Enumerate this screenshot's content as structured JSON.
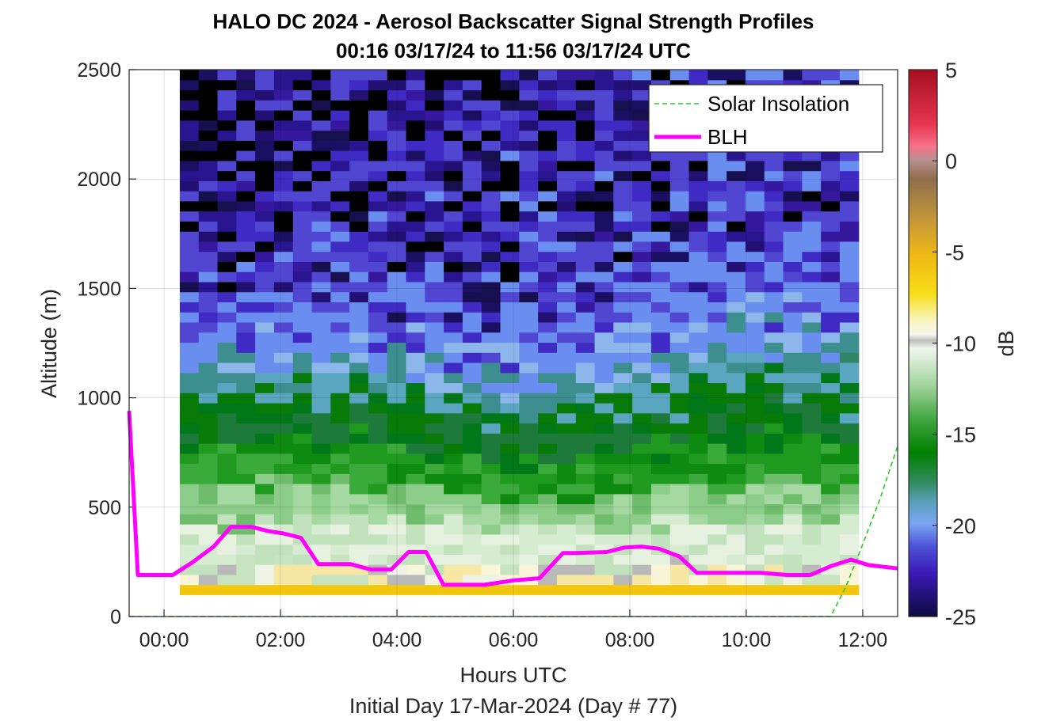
{
  "chart_data": {
    "type": "heatmap",
    "title": "HALO DC 2024 - Aerosol Backscatter Signal Strength Profiles",
    "subtitle": "00:16 03/17/24 to 11:56 03/17/24  UTC",
    "xlabel": "Hours UTC",
    "xlabel2": "Initial Day 17-Mar-2024 (Day # 77)",
    "ylabel": "Altitude (m)",
    "colorbar_label": "dB",
    "xlim": [
      -0.6,
      12.6
    ],
    "ylim": [
      0,
      2500
    ],
    "x_ticks": [
      0,
      2,
      4,
      6,
      8,
      10,
      12
    ],
    "x_tick_labels": [
      "00:00",
      "02:00",
      "04:00",
      "06:00",
      "08:00",
      "10:00",
      "12:00"
    ],
    "y_ticks": [
      0,
      500,
      1000,
      1500,
      2000,
      2500
    ],
    "y_tick_labels": [
      "0",
      "500",
      "1000",
      "1500",
      "2000",
      "2500"
    ],
    "clim": [
      -25,
      5
    ],
    "cbar_ticks": [
      5,
      0,
      -5,
      -10,
      -15,
      -20,
      -25
    ],
    "cbar_tick_labels": [
      "5",
      "0",
      "-5",
      "-10",
      "-15",
      "-20",
      "-25"
    ],
    "grid": true,
    "legend_position": "top-right",
    "legend": [
      {
        "name": "Solar Insolation",
        "color": "#22cc22",
        "style": "dashed"
      },
      {
        "name": "BLH",
        "color": "#ff00ff",
        "style": "solid"
      }
    ],
    "heatmap_x_range_hours": [
      0.27,
      11.93
    ],
    "heatmap_y_range_m": [
      100,
      2500
    ],
    "blh": {
      "x": [
        -0.6,
        -0.45,
        0.15,
        0.5,
        0.85,
        1.15,
        1.5,
        1.8,
        2.05,
        2.35,
        2.65,
        3.2,
        3.55,
        3.9,
        4.2,
        4.5,
        4.8,
        5.5,
        6.0,
        6.45,
        6.85,
        7.1,
        7.6,
        7.9,
        8.2,
        8.5,
        8.85,
        9.15,
        9.5,
        9.9,
        10.25,
        10.7,
        11.1,
        11.45,
        11.8,
        12.1,
        12.6
      ],
      "y": [
        940,
        190,
        190,
        250,
        320,
        410,
        410,
        390,
        380,
        360,
        240,
        240,
        215,
        215,
        295,
        295,
        145,
        145,
        165,
        175,
        290,
        290,
        295,
        315,
        320,
        310,
        275,
        200,
        200,
        200,
        200,
        190,
        190,
        230,
        260,
        235,
        220
      ]
    },
    "solar_insolation": {
      "x": [
        -0.6,
        11.3,
        11.45,
        11.7,
        12.0,
        12.3,
        12.6
      ],
      "y": [
        0,
        0,
        0,
        130,
        330,
        540,
        780
      ]
    }
  }
}
